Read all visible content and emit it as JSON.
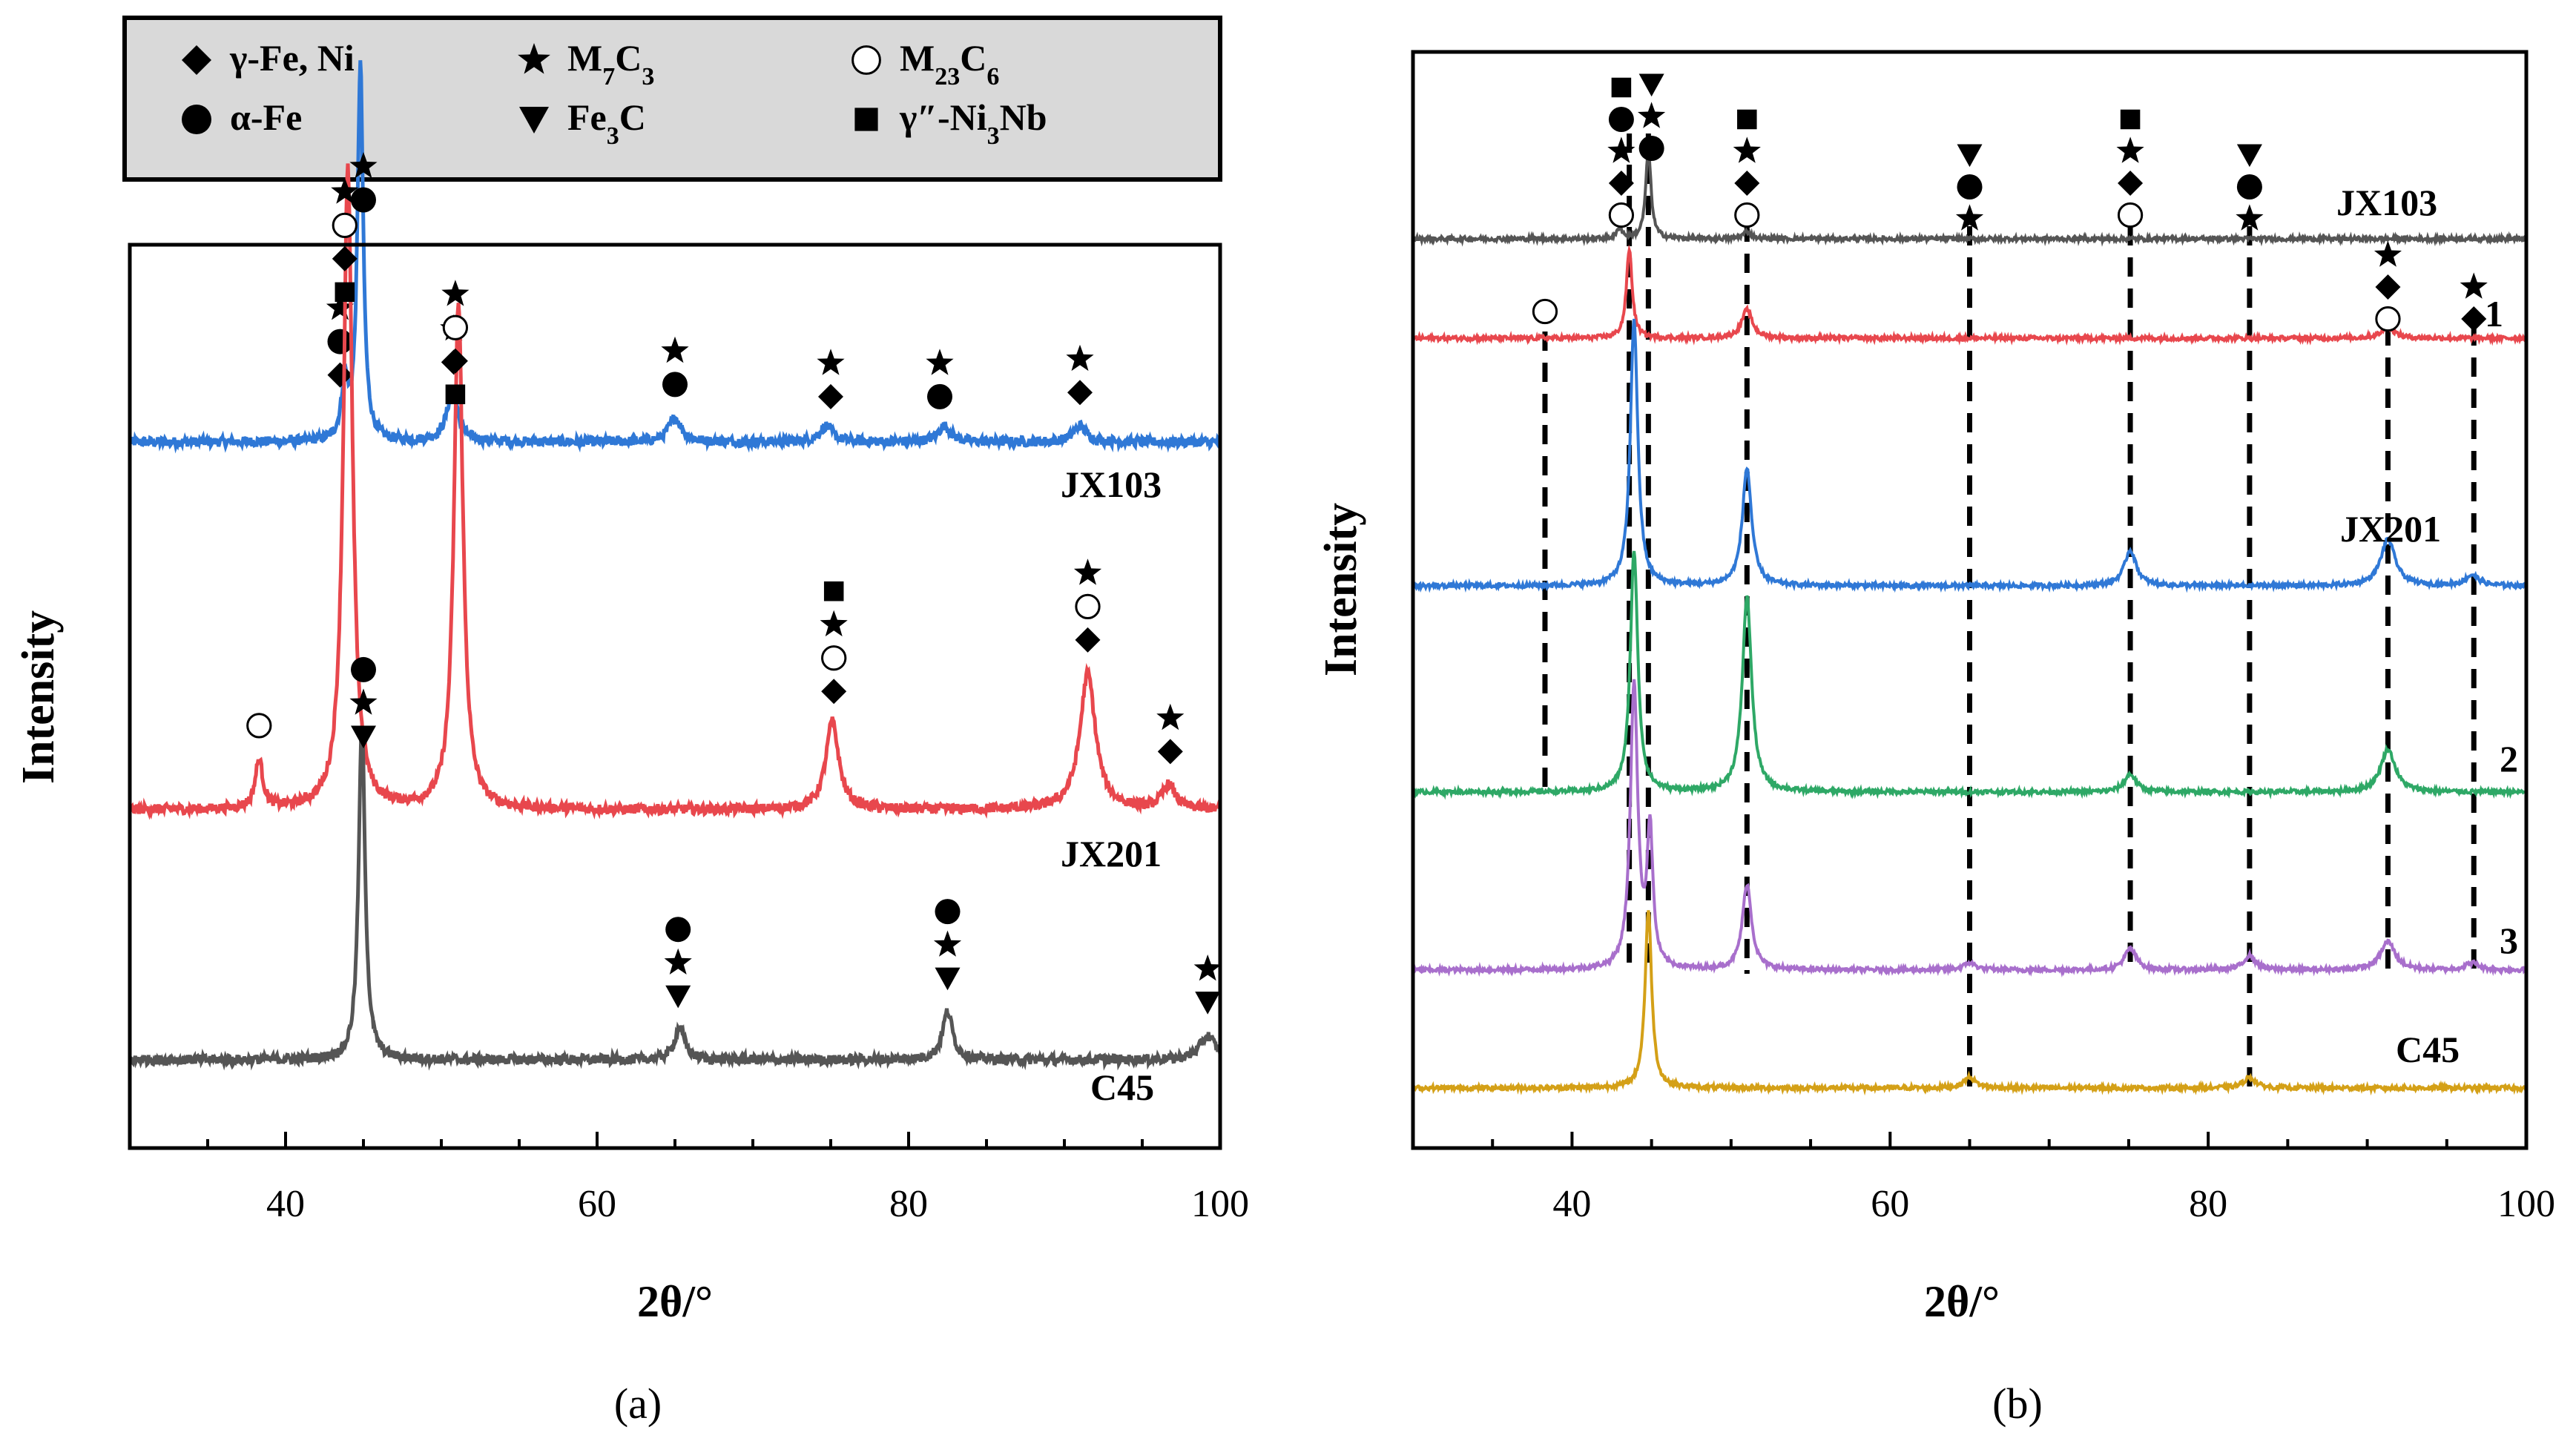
{
  "legend": {
    "items": [
      {
        "symbol": "diamond",
        "label": "γ-Fe, Ni",
        "html": "γ-Fe, Ni"
      },
      {
        "symbol": "circle",
        "label": "α-Fe",
        "html": "α-Fe"
      },
      {
        "symbol": "star",
        "label": "M7C3",
        "html": "M<tspan baseline-shift=\"sub\" font-size=\"34\">7</tspan>C<tspan baseline-shift=\"sub\" font-size=\"34\">3</tspan>"
      },
      {
        "symbol": "triangle",
        "label": "Fe3C",
        "html": "Fe<tspan baseline-shift=\"sub\" font-size=\"34\">3</tspan>C"
      },
      {
        "symbol": "open-circle",
        "label": "M23C6",
        "html": "M<tspan baseline-shift=\"sub\" font-size=\"34\">23</tspan>C<tspan baseline-shift=\"sub\" font-size=\"34\">6</tspan>"
      },
      {
        "symbol": "square",
        "label": "γ″-Ni3Nb",
        "html": "γ″-Ni<tspan baseline-shift=\"sub\" font-size=\"34\">3</tspan>Nb"
      }
    ]
  },
  "chart_data": [
    {
      "panel": "(a)",
      "type": "line",
      "xlabel": "2θ/°",
      "ylabel": "Intensity",
      "xlim": [
        30,
        100
      ],
      "xticks": [
        40,
        60,
        80,
        100
      ],
      "series": [
        {
          "name": "JX103",
          "color": "#2f78d6",
          "baseline": 0.69,
          "peaks": [
            [
              43.8,
              0.07,
              0.25
            ],
            [
              44.8,
              0.47,
              0.22
            ],
            [
              50.7,
              0.06,
              0.45
            ],
            [
              65.0,
              0.03,
              0.5
            ],
            [
              74.7,
              0.02,
              0.5
            ],
            [
              82.3,
              0.02,
              0.5
            ],
            [
              91.0,
              0.02,
              0.5
            ]
          ],
          "markers": [
            {
              "x": 43.5,
              "symbols": [
                "diamond",
                "circle",
                "star"
              ]
            },
            {
              "x": 45.0,
              "symbols": [
                "circle",
                "star"
              ]
            },
            {
              "x": 50.8,
              "symbols": [
                "diamond",
                "star"
              ]
            },
            {
              "x": 65.0,
              "symbols": [
                "circle",
                "star"
              ]
            },
            {
              "x": 75.0,
              "symbols": [
                "diamond",
                "star"
              ]
            },
            {
              "x": 82.0,
              "symbols": [
                "circle",
                "star"
              ]
            },
            {
              "x": 91.0,
              "symbols": [
                "diamond",
                "star"
              ]
            }
          ]
        },
        {
          "name": "JX201",
          "color": "#e8474d",
          "baseline": 0.07,
          "peaks": [
            [
              38.3,
              0.06,
              0.3
            ],
            [
              44.0,
              0.8,
              0.35
            ],
            [
              51.1,
              0.63,
              0.35
            ],
            [
              75.1,
              0.11,
              0.5
            ],
            [
              91.5,
              0.17,
              0.6
            ],
            [
              96.7,
              0.03,
              0.5
            ]
          ],
          "markers": [
            {
              "x": 38.3,
              "symbols": [
                "open-circle"
              ]
            },
            {
              "x": 43.8,
              "symbols": [
                "square",
                "diamond",
                "open-circle",
                "star"
              ]
            },
            {
              "x": 50.9,
              "symbols": [
                "square",
                "diamond",
                "open-circle",
                "star"
              ]
            },
            {
              "x": 75.2,
              "symbols": [
                "diamond",
                "open-circle",
                "star",
                "square"
              ]
            },
            {
              "x": 91.5,
              "symbols": [
                "diamond",
                "open-circle",
                "star"
              ]
            },
            {
              "x": 96.8,
              "symbols": [
                "diamond",
                "star"
              ]
            }
          ]
        },
        {
          "name": "C45",
          "color": "#555555",
          "baseline": 0.028,
          "peaks": [
            [
              44.9,
              0.42,
              0.25
            ],
            [
              65.3,
              0.04,
              0.4
            ],
            [
              82.5,
              0.06,
              0.4
            ],
            [
              99.2,
              0.03,
              0.6
            ]
          ],
          "markers": [
            {
              "x": 45.0,
              "symbols": [
                "triangle",
                "star",
                "circle"
              ]
            },
            {
              "x": 65.2,
              "symbols": [
                "triangle",
                "star",
                "circle"
              ]
            },
            {
              "x": 82.5,
              "symbols": [
                "triangle",
                "star",
                "circle"
              ]
            },
            {
              "x": 99.2,
              "symbols": [
                "triangle",
                "star"
              ]
            }
          ]
        }
      ]
    },
    {
      "panel": "(b)",
      "type": "line",
      "xlabel": "2θ/°",
      "ylabel": "Intensity",
      "xlim": [
        30,
        100
      ],
      "xticks": [
        40,
        60,
        80,
        100
      ],
      "reference_lines": [
        38.3,
        43.6,
        44.8,
        51.0,
        65.0,
        75.1,
        82.6,
        91.3,
        96.7
      ],
      "series": [
        {
          "name": "JX103",
          "color": "#555555",
          "baseline": 0.0,
          "peaks": [
            [
              43.0,
              0.03,
              0.2
            ],
            [
              44.8,
              0.25,
              0.2
            ],
            [
              51.0,
              0.02,
              0.3
            ]
          ]
        },
        {
          "name": "1",
          "color": "#e8474d",
          "baseline": 0.0,
          "peaks": [
            [
              43.6,
              0.25,
              0.22
            ],
            [
              51.0,
              0.08,
              0.4
            ],
            [
              91.3,
              0.03,
              0.5
            ]
          ]
        },
        {
          "name": "JX201",
          "color": "#2f78d6",
          "baseline": 0.0,
          "peaks": [
            [
              43.9,
              0.75,
              0.28
            ],
            [
              51.0,
              0.33,
              0.35
            ],
            [
              75.1,
              0.1,
              0.45
            ],
            [
              91.3,
              0.13,
              0.55
            ],
            [
              96.6,
              0.03,
              0.5
            ]
          ]
        },
        {
          "name": "2",
          "color": "#2ea866",
          "baseline": 0.0,
          "peaks": [
            [
              43.9,
              0.68,
              0.28
            ],
            [
              51.0,
              0.55,
              0.35
            ],
            [
              75.1,
              0.05,
              0.45
            ],
            [
              91.3,
              0.12,
              0.55
            ]
          ]
        },
        {
          "name": "3",
          "color": "#a86fcc",
          "baseline": 0.0,
          "peaks": [
            [
              43.9,
              0.8,
              0.28
            ],
            [
              44.9,
              0.38,
              0.22
            ],
            [
              51.0,
              0.24,
              0.35
            ],
            [
              65.0,
              0.02,
              0.45
            ],
            [
              75.1,
              0.06,
              0.45
            ],
            [
              82.6,
              0.04,
              0.45
            ],
            [
              91.3,
              0.08,
              0.55
            ],
            [
              96.6,
              0.02,
              0.5
            ]
          ]
        },
        {
          "name": "C45",
          "color": "#d4a017",
          "baseline": 0.0,
          "peaks": [
            [
              44.8,
              0.5,
              0.25
            ],
            [
              65.0,
              0.03,
              0.45
            ],
            [
              82.6,
              0.03,
              0.45
            ]
          ]
        }
      ],
      "markers": [
        {
          "x": 43.1,
          "symbols": [
            "open-circle",
            "diamond",
            "star",
            "circle",
            "square"
          ]
        },
        {
          "x": 45.0,
          "symbols": [
            "circle",
            "star",
            "triangle"
          ]
        },
        {
          "x": 51.0,
          "symbols": [
            "open-circle",
            "diamond",
            "star",
            "square"
          ]
        },
        {
          "x": 65.0,
          "symbols": [
            "star",
            "circle",
            "triangle"
          ]
        },
        {
          "x": 75.1,
          "symbols": [
            "open-circle",
            "diamond",
            "star",
            "square"
          ]
        },
        {
          "x": 82.6,
          "symbols": [
            "star",
            "circle",
            "triangle"
          ]
        },
        {
          "x": 38.3,
          "symbols": [
            "open-circle"
          ]
        },
        {
          "x": 91.3,
          "symbols": [
            "open-circle",
            "diamond",
            "star"
          ]
        },
        {
          "x": 96.7,
          "symbols": [
            "diamond",
            "star"
          ]
        }
      ]
    }
  ]
}
